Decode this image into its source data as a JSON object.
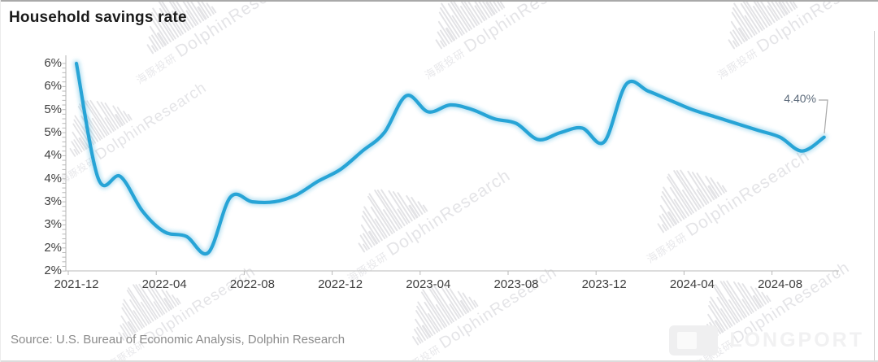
{
  "header": {
    "title": "Household savings rate"
  },
  "annotation": {
    "last_value_label": "4.40%"
  },
  "source": {
    "text": "Source: U.S. Bureau of Economic Analysis, Dolphin Research"
  },
  "branding": {
    "logo_text": "LONGPORT",
    "logo_icon": "longport-block-logo"
  },
  "watermark": {
    "cn": "海豚投研",
    "en": "DolphinResearch",
    "icon": "dolphin-sonar-glyph"
  },
  "colors": {
    "line": "#27a4d6",
    "line_glow": "#2aa6d8",
    "axis": "#c6c6c6",
    "tick": "#b9b9b9",
    "tick_label": "#3f3f3f",
    "title": "#1b1b1b",
    "annotation_text": "#5d6b7b",
    "leader_line": "#a8a8a8",
    "watermark": "#e3e3e6",
    "source_text": "#8b8b8b"
  },
  "chart_data": {
    "type": "line",
    "title": "Household savings rate",
    "unit": "%",
    "grid": false,
    "legend": false,
    "x": [
      "2021-12",
      "2022-01",
      "2022-02",
      "2022-03",
      "2022-04",
      "2022-05",
      "2022-06",
      "2022-07",
      "2022-08",
      "2022-09",
      "2022-10",
      "2022-11",
      "2022-12",
      "2023-01",
      "2023-02",
      "2023-03",
      "2023-04",
      "2023-05",
      "2023-06",
      "2023-07",
      "2023-08",
      "2023-09",
      "2023-10",
      "2023-11",
      "2023-12",
      "2024-01",
      "2024-02",
      "2024-03",
      "2024-04",
      "2024-05",
      "2024-06",
      "2024-07",
      "2024-08",
      "2024-09",
      "2024-10"
    ],
    "values": [
      6.0,
      3.5,
      3.55,
      2.8,
      2.35,
      2.25,
      1.9,
      3.1,
      3.0,
      3.0,
      3.15,
      3.45,
      3.7,
      4.1,
      4.5,
      5.3,
      4.95,
      5.1,
      5.0,
      4.8,
      4.7,
      4.35,
      4.5,
      4.6,
      4.3,
      5.55,
      5.4,
      5.2,
      5.0,
      4.85,
      4.7,
      4.55,
      4.4,
      4.1,
      4.4
    ],
    "last_point": {
      "x": "2024-10",
      "value": 4.4,
      "label": "4.40%"
    },
    "x_tick_labels": [
      "2021-12",
      "2022-04",
      "2022-08",
      "2022-12",
      "2023-04",
      "2023-08",
      "2023-12",
      "2024-04",
      "2024-08"
    ],
    "y_tick_values": [
      6.0,
      5.5,
      5.0,
      4.5,
      4.0,
      3.5,
      3.0,
      2.5,
      2.0,
      1.5
    ],
    "y_tick_labels": [
      "6%",
      "6%",
      "5%",
      "5%",
      "4%",
      "4%",
      "3%",
      "3%",
      "2%",
      "2%"
    ],
    "ylim": [
      1.5,
      6.0
    ],
    "xlabel": "",
    "ylabel": ""
  }
}
